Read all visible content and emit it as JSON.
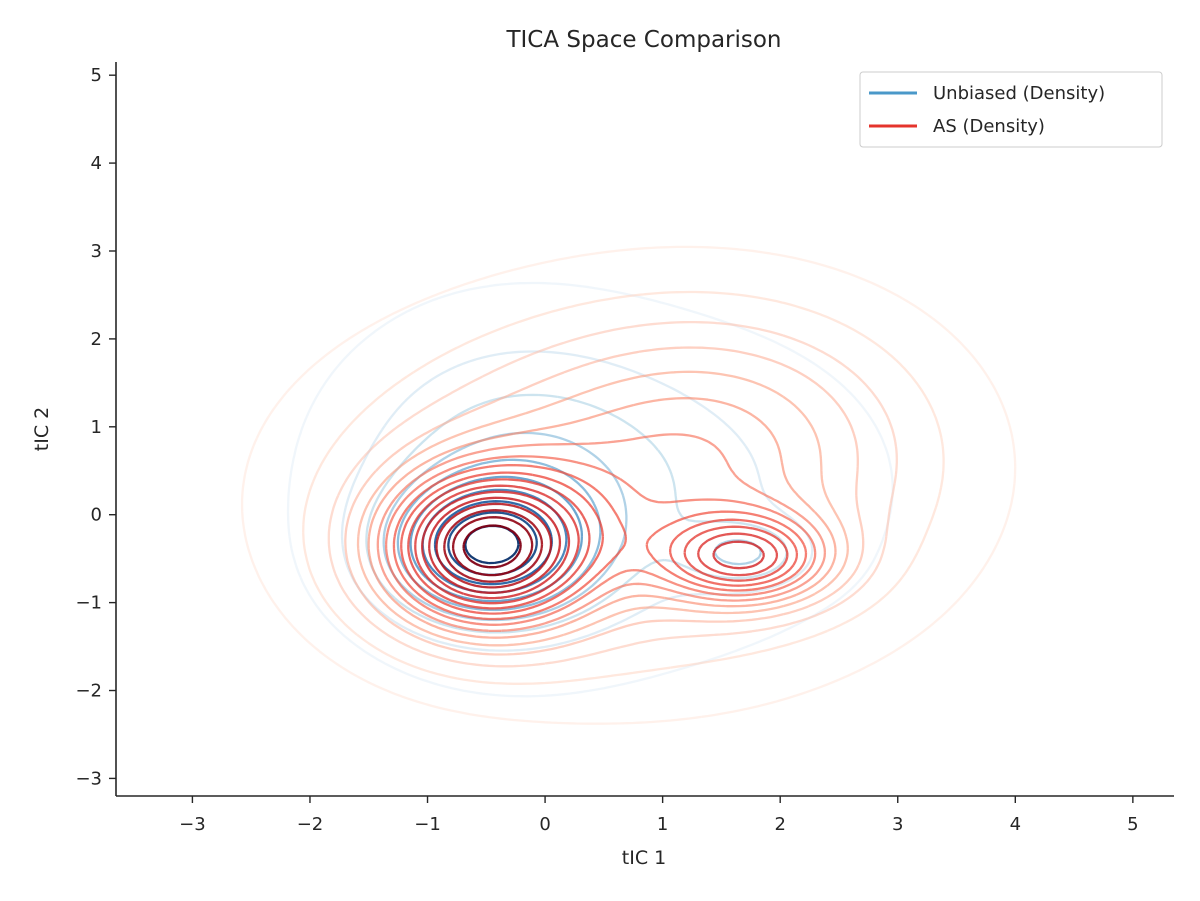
{
  "chart_data": {
    "type": "contour",
    "title": "TICA Space Comparison",
    "xlabel": "tIC 1",
    "ylabel": "tIC 2",
    "xlim": [
      -3.65,
      5.35
    ],
    "ylim": [
      -3.2,
      5.15
    ],
    "xticks": [
      -3,
      -2,
      -1,
      0,
      1,
      2,
      3,
      4,
      5
    ],
    "yticks": [
      -3,
      -2,
      -1,
      0,
      1,
      2,
      3,
      4,
      5
    ],
    "xtick_labels": [
      "−3",
      "−2",
      "−1",
      "0",
      "1",
      "2",
      "3",
      "4",
      "5"
    ],
    "ytick_labels": [
      "−3",
      "−2",
      "−1",
      "0",
      "1",
      "2",
      "3",
      "4",
      "5"
    ],
    "grid": false,
    "legend": {
      "placement": "upper right"
    },
    "series": [
      {
        "name": "Unbiased (Density)",
        "color": "#4a98c9",
        "colormap": "Blues",
        "levels": 10,
        "components": [
          {
            "center": [
              -0.5,
              -0.4
            ],
            "spread": [
              0.55,
              0.5
            ],
            "weight": 1.0
          },
          {
            "center": [
              -0.3,
              0.3
            ],
            "spread": [
              0.9,
              1.1
            ],
            "weight": 0.45
          },
          {
            "center": [
              1.7,
              -0.45
            ],
            "spread": [
              0.35,
              0.25
            ],
            "weight": 0.35
          },
          {
            "center": [
              1.2,
              0.3
            ],
            "spread": [
              1.1,
              1.1
            ],
            "weight": 0.2
          }
        ]
      },
      {
        "name": "AS (Density)",
        "color": "#e5342c",
        "colormap": "Reds",
        "levels": 18,
        "components": [
          {
            "center": [
              -0.5,
              -0.4
            ],
            "spread": [
              0.6,
              0.6
            ],
            "weight": 1.0
          },
          {
            "center": [
              1.7,
              -0.5
            ],
            "spread": [
              0.5,
              0.35
            ],
            "weight": 0.6
          },
          {
            "center": [
              0.6,
              0.2
            ],
            "spread": [
              1.6,
              1.3
            ],
            "weight": 0.35
          },
          {
            "center": [
              1.6,
              1.0
            ],
            "spread": [
              1.1,
              1.0
            ],
            "weight": 0.18
          }
        ]
      }
    ]
  }
}
